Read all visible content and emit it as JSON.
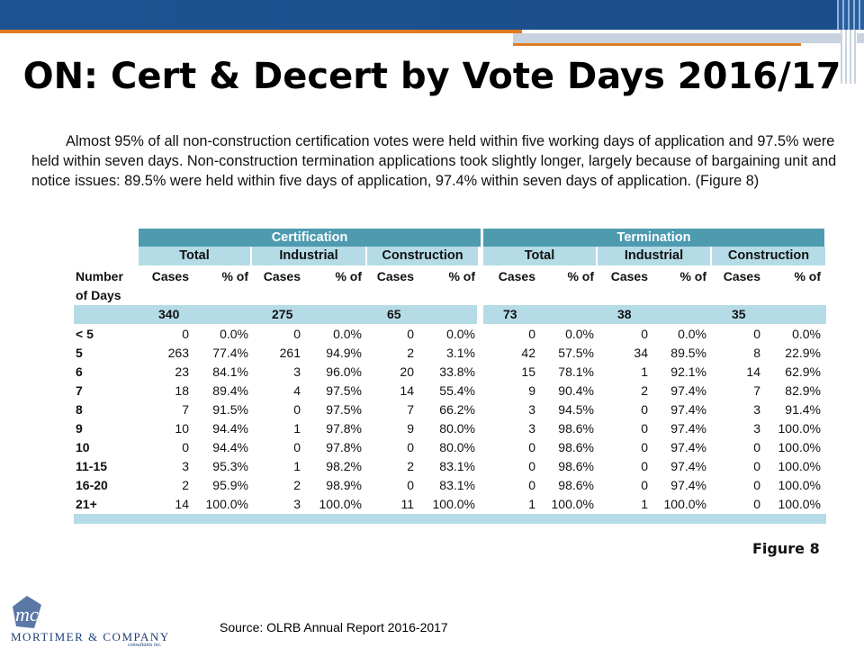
{
  "title": "ON: Cert & Decert by Vote Days 2016/17",
  "paragraph": "Almost 95% of all non-construction certification votes were held within five working days of application and 97.5% were held within seven days. Non-construction termination applications took slightly longer, largely because of bargaining unit and notice issues: 89.5% were held within five days of application, 97.4% within seven days of application. (Figure 8)",
  "table": {
    "groups": [
      "Certification",
      "Termination"
    ],
    "subgroups": [
      "Total",
      "Industrial",
      "Construction",
      "Total",
      "Industrial",
      "Construction"
    ],
    "row_header_1": "Number",
    "row_header_2": "of Days",
    "col_cases": "Cases",
    "col_pct": "% of",
    "totals": [
      "340",
      "275",
      "65",
      "73",
      "38",
      "35"
    ],
    "rows": [
      {
        "label": "< 5",
        "v": [
          "0",
          "0.0%",
          "0",
          "0.0%",
          "0",
          "0.0%",
          "0",
          "0.0%",
          "0",
          "0.0%",
          "0",
          "0.0%"
        ]
      },
      {
        "label": "5",
        "v": [
          "263",
          "77.4%",
          "261",
          "94.9%",
          "2",
          "3.1%",
          "42",
          "57.5%",
          "34",
          "89.5%",
          "8",
          "22.9%"
        ]
      },
      {
        "label": "6",
        "v": [
          "23",
          "84.1%",
          "3",
          "96.0%",
          "20",
          "33.8%",
          "15",
          "78.1%",
          "1",
          "92.1%",
          "14",
          "62.9%"
        ]
      },
      {
        "label": "7",
        "v": [
          "18",
          "89.4%",
          "4",
          "97.5%",
          "14",
          "55.4%",
          "9",
          "90.4%",
          "2",
          "97.4%",
          "7",
          "82.9%"
        ]
      },
      {
        "label": "8",
        "v": [
          "7",
          "91.5%",
          "0",
          "97.5%",
          "7",
          "66.2%",
          "3",
          "94.5%",
          "0",
          "97.4%",
          "3",
          "91.4%"
        ]
      },
      {
        "label": "9",
        "v": [
          "10",
          "94.4%",
          "1",
          "97.8%",
          "9",
          "80.0%",
          "3",
          "98.6%",
          "0",
          "97.4%",
          "3",
          "100.0%"
        ]
      },
      {
        "label": "10",
        "v": [
          "0",
          "94.4%",
          "0",
          "97.8%",
          "0",
          "80.0%",
          "0",
          "98.6%",
          "0",
          "97.4%",
          "0",
          "100.0%"
        ]
      },
      {
        "label": "11-15",
        "v": [
          "3",
          "95.3%",
          "1",
          "98.2%",
          "2",
          "83.1%",
          "0",
          "98.6%",
          "0",
          "97.4%",
          "0",
          "100.0%"
        ]
      },
      {
        "label": "16-20",
        "v": [
          "2",
          "95.9%",
          "2",
          "98.9%",
          "0",
          "83.1%",
          "0",
          "98.6%",
          "0",
          "97.4%",
          "0",
          "100.0%"
        ]
      },
      {
        "label": "21+",
        "v": [
          "14",
          "100.0%",
          "3",
          "100.0%",
          "11",
          "100.0%",
          "1",
          "100.0%",
          "1",
          "100.0%",
          "0",
          "100.0%"
        ]
      }
    ]
  },
  "figure_label": "Figure 8",
  "source": "Source: OLRB Annual Report 2016-2017",
  "logo": {
    "mark": "mc",
    "name": "MORTIMER & COMPANY",
    "sub": "consultants inc."
  },
  "colors": {
    "banner": "#1d5393",
    "accent": "#e07b23",
    "table_header": "#4e9bb0",
    "table_light": "#b5dce6"
  }
}
